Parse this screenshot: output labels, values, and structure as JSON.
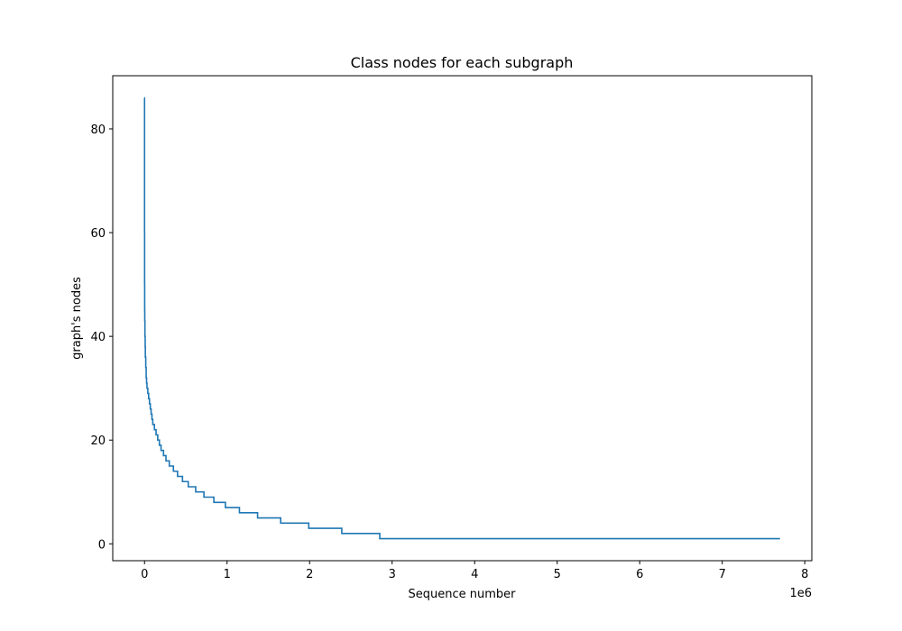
{
  "chart_data": {
    "type": "line",
    "title": "Class nodes for each subgraph",
    "xlabel": "Sequence number",
    "ylabel": "graph's nodes",
    "x_offset_label": "1e6",
    "xlim": [
      -0.385,
      8.085
    ],
    "ylim": [
      -3.25,
      90.25
    ],
    "x_ticks": [
      0,
      1,
      2,
      3,
      4,
      5,
      6,
      7,
      8
    ],
    "y_ticks": [
      0,
      20,
      40,
      60,
      80
    ],
    "grid": false,
    "line_color": "#1f77b4",
    "series": [
      {
        "x": [
          0,
          0.0005,
          0.001,
          0.002,
          0.003,
          0.005,
          0.008,
          0.01,
          0.015,
          0.02,
          0.025,
          0.03,
          0.04,
          0.05,
          0.06,
          0.07,
          0.08,
          0.09,
          0.1,
          0.12,
          0.14,
          0.16,
          0.18,
          0.2,
          0.23,
          0.26,
          0.3,
          0.35,
          0.4,
          0.46,
          0.53,
          0.62,
          0.72,
          0.84,
          0.98,
          1.15,
          1.37,
          1.65,
          1.99,
          2.39,
          2.85,
          3.48,
          4.53,
          7.7
        ],
        "y": [
          86,
          60,
          50,
          45,
          43,
          40,
          38,
          36,
          34,
          32,
          31,
          30,
          29,
          28,
          27,
          26,
          25,
          24,
          23,
          22,
          21,
          20,
          19,
          18,
          17,
          16,
          15,
          14,
          13,
          12,
          11,
          10,
          9,
          8,
          7,
          6,
          5,
          4,
          3,
          2,
          1,
          1,
          1,
          1
        ]
      }
    ]
  }
}
